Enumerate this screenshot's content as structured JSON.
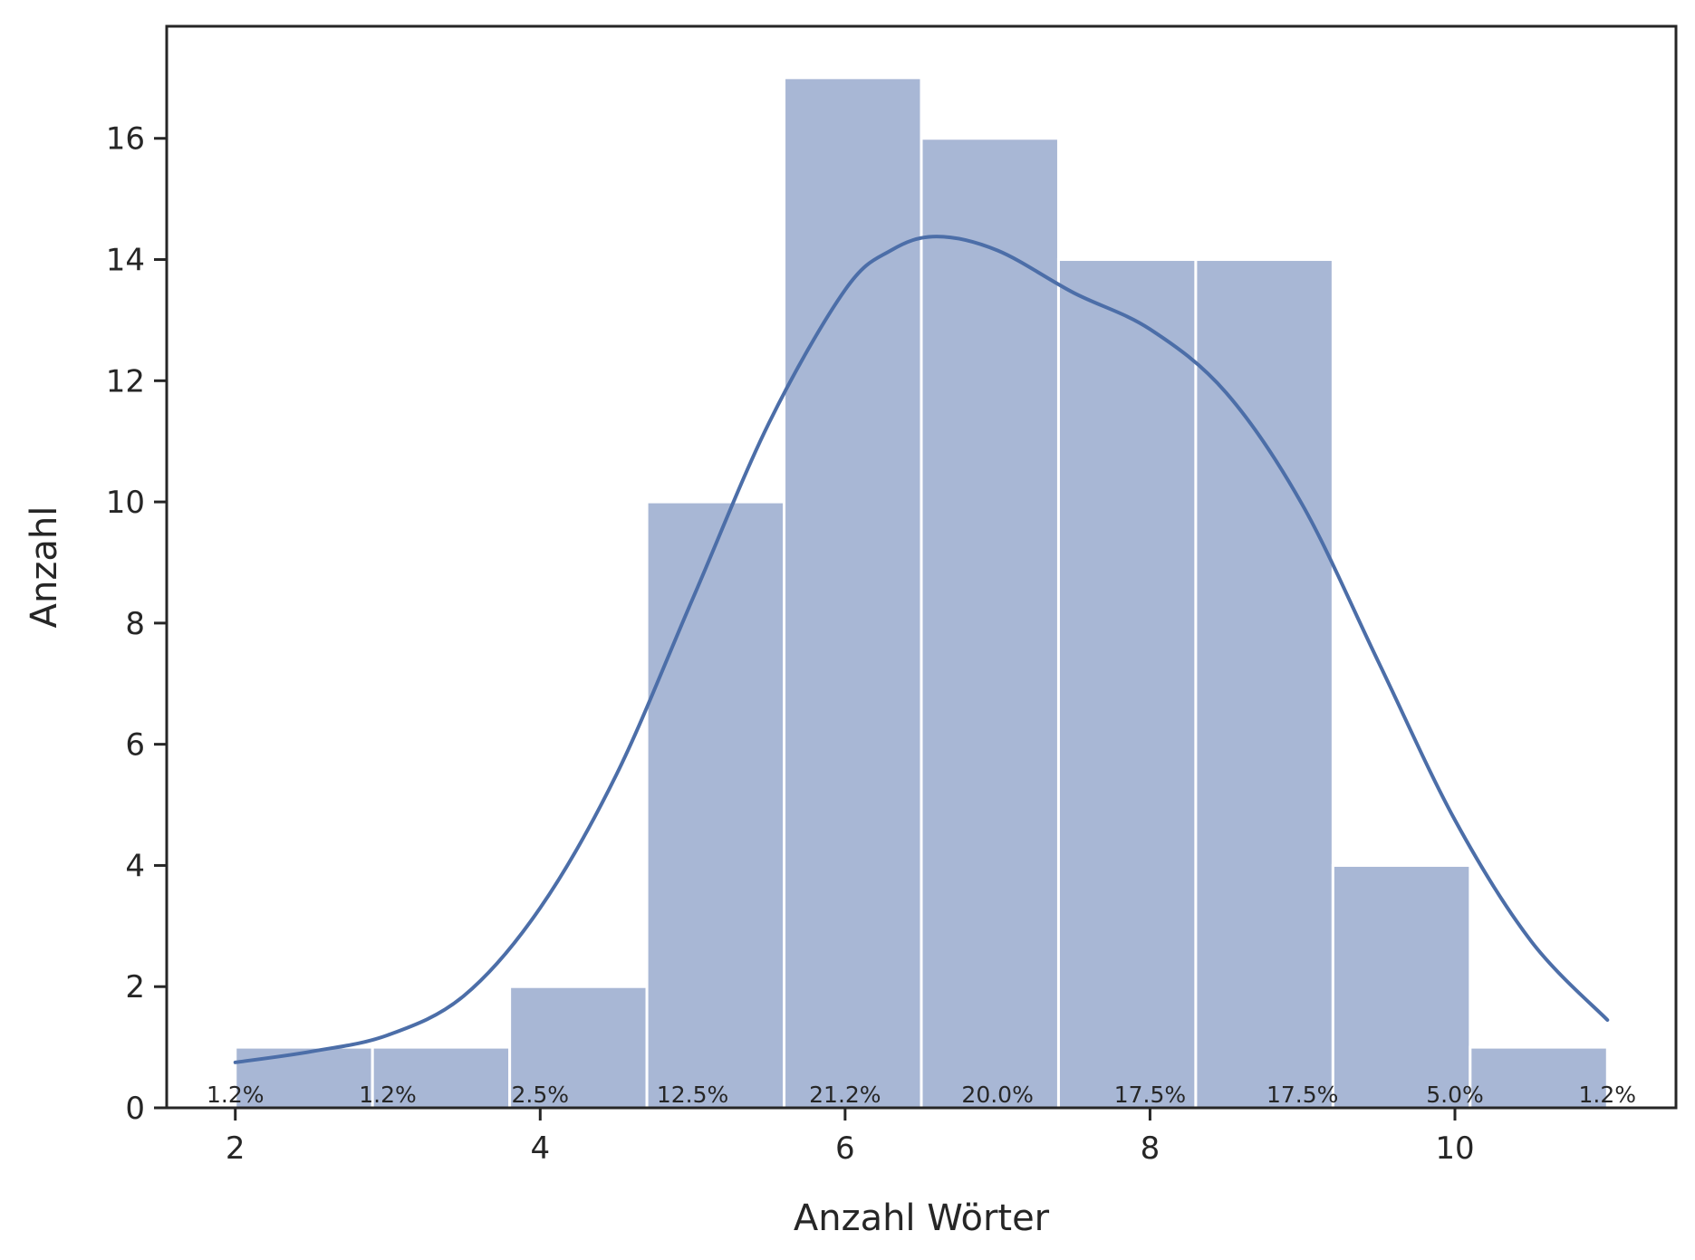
{
  "chart_data": {
    "type": "bar",
    "xlabel": "Anzahl Wörter",
    "ylabel": "Anzahl",
    "xlim": [
      1.55,
      11.45
    ],
    "ylim": [
      0,
      17.85
    ],
    "xticks": [
      2,
      4,
      6,
      8,
      10
    ],
    "yticks": [
      0,
      2,
      4,
      6,
      8,
      10,
      12,
      14,
      16
    ],
    "bin_edges": [
      2.0,
      2.9,
      3.8,
      4.7,
      5.6,
      6.5,
      7.4,
      8.3,
      9.2,
      10.1,
      11.0
    ],
    "values": [
      1,
      1,
      2,
      10,
      17,
      16,
      14,
      14,
      4,
      1
    ],
    "percent_labels": [
      {
        "x": 2,
        "label": "1.2%"
      },
      {
        "x": 3,
        "label": "1.2%"
      },
      {
        "x": 4,
        "label": "2.5%"
      },
      {
        "x": 5,
        "label": "12.5%"
      },
      {
        "x": 6,
        "label": "21.2%"
      },
      {
        "x": 7,
        "label": "20.0%"
      },
      {
        "x": 8,
        "label": "17.5%"
      },
      {
        "x": 9,
        "label": "17.5%"
      },
      {
        "x": 10,
        "label": "5.0%"
      },
      {
        "x": 11,
        "label": "1.2%"
      }
    ],
    "kde": {
      "x": [
        2.0,
        2.5,
        3.0,
        3.5,
        4.0,
        4.5,
        5.0,
        5.5,
        6.0,
        6.3,
        6.6,
        7.0,
        7.5,
        8.0,
        8.5,
        9.0,
        9.5,
        10.0,
        10.5,
        11.0
      ],
      "y": [
        0.75,
        0.93,
        1.2,
        1.85,
        3.3,
        5.5,
        8.4,
        11.3,
        13.5,
        14.15,
        14.38,
        14.15,
        13.45,
        12.85,
        11.8,
        9.95,
        7.35,
        4.75,
        2.75,
        1.45
      ]
    },
    "grid": false,
    "legend": "none",
    "colors": {
      "bar": "#a8b7d5",
      "bar_edge": "#ffffff",
      "kde": "#4c6ea8",
      "axis": "#262626",
      "text": "#262626"
    }
  }
}
